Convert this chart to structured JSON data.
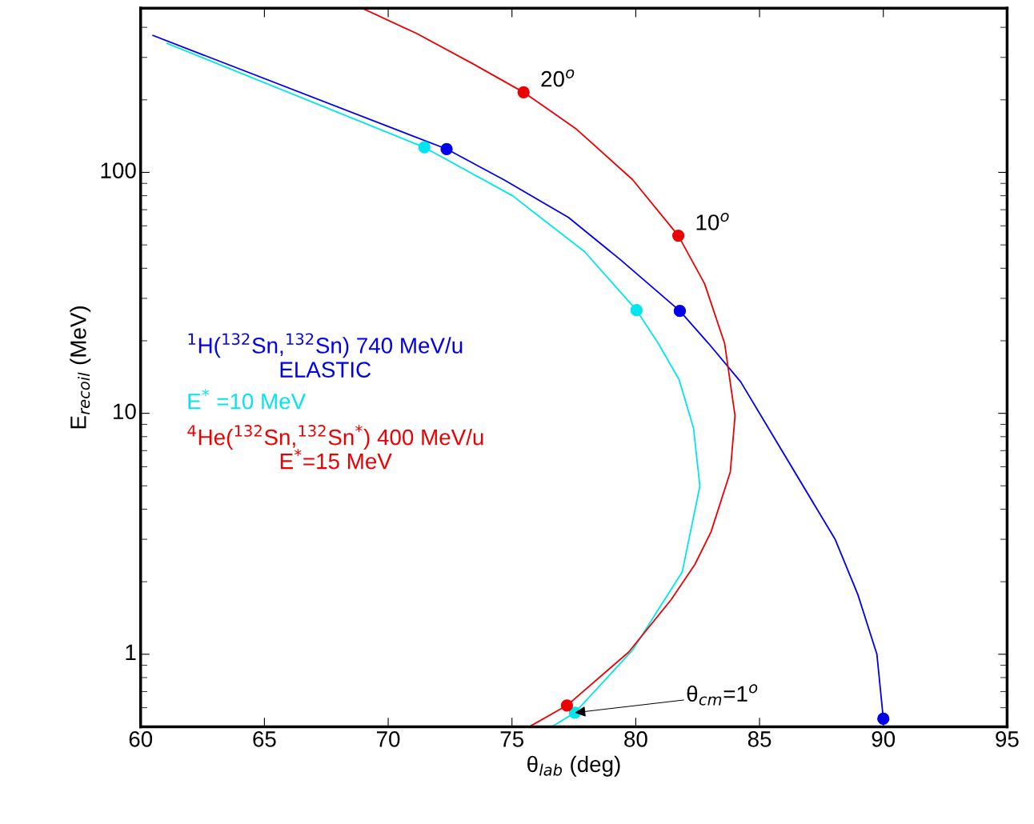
{
  "chart_data": {
    "type": "line",
    "xlabel": "θ$_{lab}$ (deg)",
    "ylabel": "E$_{recoil}$ (MeV)",
    "log": "y",
    "xlim": [
      60,
      95
    ],
    "xticks": [
      60,
      65,
      70,
      75,
      80,
      85,
      90,
      95
    ],
    "ylim": [
      0.5,
      480
    ],
    "yticks": [
      1,
      10,
      100
    ],
    "grid": false,
    "legend": "left",
    "series": [
      {
        "name": "$^{1}$H($^{132}$Sn,$^{132}$Sn) 740 MeV/u\nELASTIC",
        "color": "#0000ee",
        "x": [
          60.5,
          72.36,
          74.69,
          77.28,
          79.38,
          81.78,
          82.94,
          84.24,
          88.06,
          88.97,
          89.74,
          90.0
        ],
        "values": [
          370,
          125,
          93,
          65,
          43.4,
          26.6,
          19.5,
          13.5,
          2.99,
          1.77,
          1.0,
          0.54
        ]
      },
      {
        "name": "E$^{*}$ =10 MeV",
        "color": "#00e5ee",
        "x": [
          61.07,
          71.46,
          75.02,
          77.93,
          80.03,
          80.91,
          81.75,
          82.33,
          82.59,
          81.88,
          79.87,
          77.54,
          76.63
        ],
        "values": [
          343,
          127,
          80,
          46.9,
          26.8,
          19.5,
          13.8,
          8.71,
          4.99,
          2.2,
          1.04,
          0.572,
          0.502
        ]
      },
      {
        "name": "$^{4}$He($^{132}$Sn,$^{132}$Sn$^{*}$) 400 MeV/u\nE$^{*}$=15 MeV",
        "color": "#ee0000",
        "x": [
          68.95,
          71.13,
          73.4,
          75.47,
          77.61,
          79.87,
          81.72,
          82.78,
          83.59,
          84.01,
          83.82,
          83.04,
          82.39,
          81.42,
          79.71,
          77.22,
          75.73
        ],
        "values": [
          480,
          378,
          283,
          215,
          151,
          93.3,
          54.6,
          34.5,
          19.5,
          9.77,
          5.72,
          3.22,
          2.36,
          1.68,
          1.02,
          0.613,
          0.502
        ]
      },
      {
        "type": "scatter",
        "color": "#0000ee",
        "marker": "circle",
        "x": [
          72.36,
          81.78,
          90.0
        ],
        "values": [
          125,
          26.6,
          0.54
        ]
      },
      {
        "type": "scatter",
        "color": "#00e5ee",
        "marker": "circle",
        "x": [
          71.46,
          80.03,
          77.54
        ],
        "values": [
          127,
          26.8,
          0.572
        ]
      },
      {
        "type": "scatter",
        "color": "#ee0000",
        "marker": "circle",
        "x": [
          75.47,
          81.72,
          77.22
        ],
        "values": [
          215,
          54.6,
          0.613
        ]
      }
    ],
    "annotations": [
      {
        "text": "20$^{o}$",
        "x": 75.47,
        "y": 215
      },
      {
        "text": "10$^{o}$",
        "x": 81.72,
        "y": 54.6
      },
      {
        "text": "θ$_{cm}$=1$^{o}$",
        "x": 77.54,
        "y": 0.572
      }
    ]
  }
}
